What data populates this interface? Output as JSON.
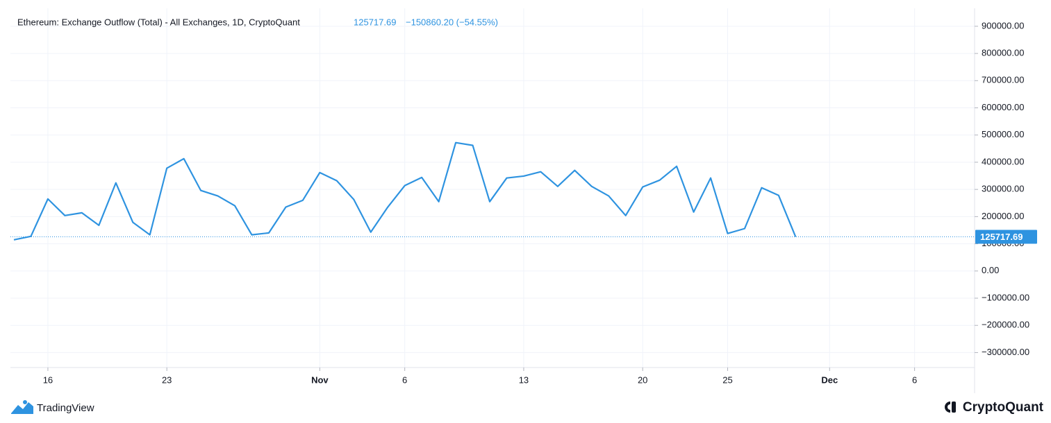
{
  "chart_data": {
    "type": "line",
    "title": "Ethereum: Exchange Outflow (Total) - All Exchanges, 1D, CryptoQuant",
    "last_value_label": "125717.69",
    "change_label": "−150860.20 (−54.55%)",
    "x": [
      "Oct 14",
      "Oct 15",
      "Oct 16",
      "Oct 17",
      "Oct 18",
      "Oct 19",
      "Oct 20",
      "Oct 21",
      "Oct 22",
      "Oct 23",
      "Oct 24",
      "Oct 25",
      "Oct 26",
      "Oct 27",
      "Oct 28",
      "Oct 29",
      "Oct 30",
      "Oct 31",
      "Nov 1",
      "Nov 2",
      "Nov 3",
      "Nov 4",
      "Nov 5",
      "Nov 6",
      "Nov 7",
      "Nov 8",
      "Nov 9",
      "Nov 10",
      "Nov 11",
      "Nov 12",
      "Nov 13",
      "Nov 14",
      "Nov 15",
      "Nov 16",
      "Nov 17",
      "Nov 18",
      "Nov 19",
      "Nov 20",
      "Nov 21",
      "Nov 22",
      "Nov 23",
      "Nov 24",
      "Nov 25",
      "Nov 26",
      "Nov 27",
      "Nov 28",
      "Nov 29"
    ],
    "series": [
      {
        "name": "Exchange Outflow (Total)",
        "color": "#2e93e0",
        "values": [
          114800,
          127500,
          265000,
          204000,
          214000,
          168000,
          324000,
          179000,
          133000,
          378000,
          413000,
          296000,
          276000,
          240000,
          133000,
          140000,
          235000,
          260000,
          362000,
          332000,
          263000,
          143000,
          235000,
          314000,
          344000,
          255000,
          472000,
          462000,
          255000,
          342000,
          349000,
          365000,
          311000,
          370000,
          311000,
          276000,
          204000,
          309000,
          334000,
          385000,
          217000,
          342000,
          138000,
          156000,
          306000,
          278000,
          125717.69
        ]
      }
    ],
    "xlim": [
      "Oct 14",
      "Dec 9"
    ],
    "xticks": [
      {
        "value": "Oct 16",
        "label": "16"
      },
      {
        "value": "Oct 23",
        "label": "23"
      },
      {
        "value": "Nov 1",
        "label": "Nov"
      },
      {
        "value": "Nov 6",
        "label": "6"
      },
      {
        "value": "Nov 13",
        "label": "13"
      },
      {
        "value": "Nov 20",
        "label": "20"
      },
      {
        "value": "Nov 25",
        "label": "25"
      },
      {
        "value": "Dec 1",
        "label": "Dec"
      },
      {
        "value": "Dec 6",
        "label": "6"
      }
    ],
    "ylim": [
      -355000,
      966000
    ],
    "yticks": [
      {
        "value": -300000,
        "label": "−300000.00"
      },
      {
        "value": -200000,
        "label": "−200000.00"
      },
      {
        "value": -100000,
        "label": "−100000.00"
      },
      {
        "value": 0,
        "label": "0.00"
      },
      {
        "value": 100000,
        "label": "100000.00"
      },
      {
        "value": 200000,
        "label": "200000.00"
      },
      {
        "value": 300000,
        "label": "300000.00"
      },
      {
        "value": 400000,
        "label": "400000.00"
      },
      {
        "value": 500000,
        "label": "500000.00"
      },
      {
        "value": 600000,
        "label": "600000.00"
      },
      {
        "value": 700000,
        "label": "700000.00"
      },
      {
        "value": 800000,
        "label": "800000.00"
      },
      {
        "value": 900000,
        "label": "900000.00"
      }
    ],
    "grid": true
  },
  "footer": {
    "left_brand": "TradingView",
    "right_brand": "CryptoQuant"
  }
}
